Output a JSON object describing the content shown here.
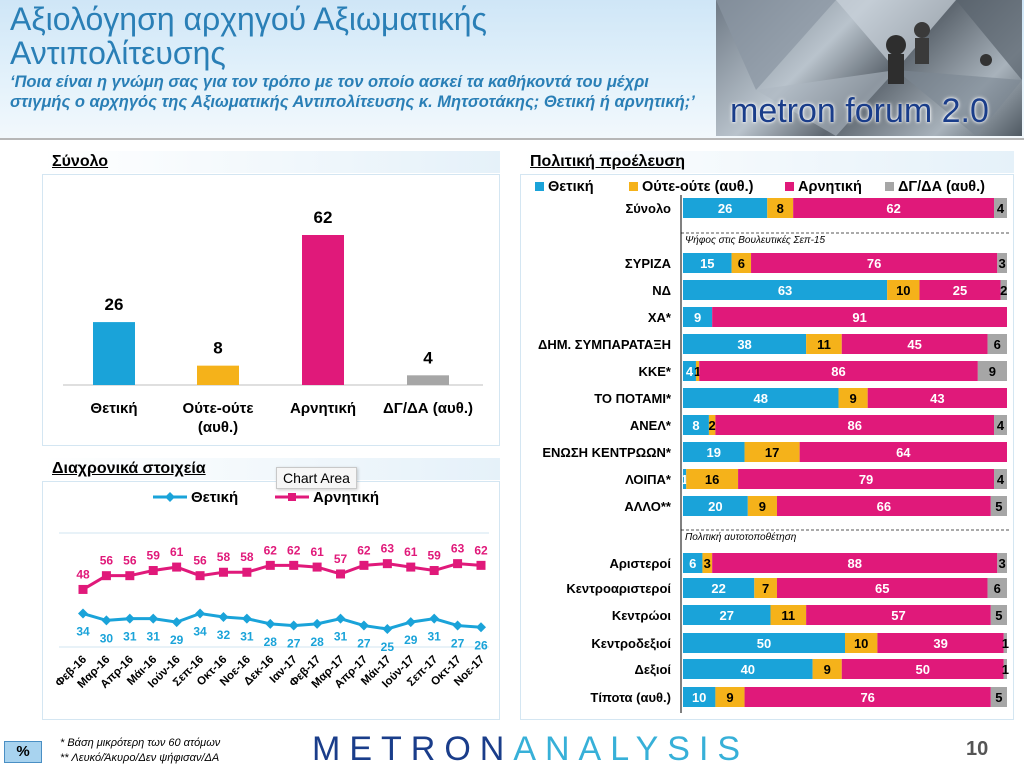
{
  "header": {
    "title": "Αξιολόγηση αρχηγού Αξιωματικής Αντιπολίτευσης",
    "subtitle": "‘Ποια είναι η γνώμη σας για τον τρόπο με τον οποίο ασκεί τα καθήκοντά του μέχρι στιγμής ο αρχηγός της Αξιωματικής Αντιπολίτευσης κ. Μητσοτάκης; Θετική ή αρνητική;’",
    "logo_text": "metron forum 2.0"
  },
  "colors": {
    "positive": "#1aa3d9",
    "neutral": "#f5b21a",
    "negative": "#e0197a",
    "dk": "#a6a6a6"
  },
  "sections": {
    "total": "Σύνολο",
    "trend": "Διαχρονικά στοιχεία",
    "political": "Πολιτική προέλευση"
  },
  "tooltip": "Chart Area",
  "chart_data": [
    {
      "type": "bar",
      "title": "Σύνολο",
      "categories": [
        "Θετική",
        "Ούτε-ούτε (αυθ.)",
        "Αρνητική",
        "ΔΓ/ΔΑ (αυθ.)"
      ],
      "values": [
        26,
        8,
        62,
        4
      ]
    },
    {
      "type": "line",
      "title": "Διαχρονικά στοιχεία",
      "x": [
        "Φεβ-16",
        "Μαρ-16",
        "Απρ-16",
        "Μάι-16",
        "Ιούν-16",
        "Σεπ-16",
        "Οκτ-16",
        "Νοε-16",
        "Δεκ-16",
        "Ιαν-17",
        "Φεβ-17",
        "Μαρ-17",
        "Απρ-17",
        "Μάι-17",
        "Ιούν-17",
        "Σεπ-17",
        "Οκτ-17",
        "Νοε-17"
      ],
      "series": [
        {
          "name": "Θετική",
          "values": [
            34,
            30,
            31,
            31,
            29,
            34,
            32,
            31,
            28,
            27,
            28,
            31,
            27,
            25,
            29,
            31,
            27,
            26
          ]
        },
        {
          "name": "Αρνητική",
          "values": [
            48,
            56,
            56,
            59,
            61,
            56,
            58,
            58,
            62,
            62,
            61,
            57,
            62,
            63,
            61,
            59,
            63,
            62
          ]
        }
      ],
      "legend": "top"
    },
    {
      "type": "bar",
      "title": "Πολιτική προέλευση",
      "stacked": true,
      "horizontal": true,
      "legend": [
        "Θετική",
        "Ούτε-ούτε (αυθ.)",
        "Αρνητική",
        "ΔΓ/ΔΑ (αυθ.)"
      ],
      "groups": [
        {
          "label": "",
          "rows": [
            {
              "label": "Σύνολο",
              "values": [
                26,
                8,
                62,
                4
              ]
            }
          ]
        },
        {
          "label": "Ψήφος στις Βουλευτικές Σεπ-15",
          "rows": [
            {
              "label": "ΣΥΡΙΖΑ",
              "values": [
                15,
                6,
                76,
                3
              ]
            },
            {
              "label": "ΝΔ",
              "values": [
                63,
                10,
                25,
                2
              ]
            },
            {
              "label": "ΧΑ*",
              "values": [
                9,
                0,
                91,
                0
              ]
            },
            {
              "label": "ΔΗΜ. ΣΥΜΠΑΡΑΤΑΞΗ",
              "values": [
                38,
                11,
                45,
                6
              ]
            },
            {
              "label": "ΚΚΕ*",
              "values": [
                4,
                1,
                86,
                9
              ]
            },
            {
              "label": "ΤΟ ΠΟΤΑΜΙ*",
              "values": [
                48,
                9,
                43,
                0
              ]
            },
            {
              "label": "ΑΝΕΛ*",
              "values": [
                8,
                2,
                86,
                4
              ]
            },
            {
              "label": "ΕΝΩΣΗ ΚΕΝΤΡΩΩΝ*",
              "values": [
                19,
                17,
                64,
                0
              ]
            },
            {
              "label": "ΛΟΙΠΑ*",
              "values": [
                1,
                16,
                79,
                4
              ]
            },
            {
              "label": "ΑΛΛΟ**",
              "values": [
                20,
                9,
                66,
                5
              ]
            }
          ]
        },
        {
          "label": "Πολιτική αυτοτοποθέτηση",
          "rows": [
            {
              "label": "Αριστεροί",
              "values": [
                6,
                3,
                88,
                3
              ]
            },
            {
              "label": "Κεντροαριστεροί",
              "values": [
                22,
                7,
                65,
                6
              ]
            },
            {
              "label": "Κεντρώοι",
              "values": [
                27,
                11,
                57,
                5
              ]
            },
            {
              "label": "Κεντροδεξιοί",
              "values": [
                50,
                10,
                39,
                1
              ]
            },
            {
              "label": "Δεξιοί",
              "values": [
                40,
                9,
                50,
                1
              ]
            },
            {
              "label": "Τίποτα (αυθ.)",
              "values": [
                10,
                9,
                76,
                5
              ]
            }
          ]
        }
      ]
    }
  ],
  "footer": {
    "note1": "* Βάση μικρότερη των 60 ατόμων",
    "note2": "** Λευκό/Άκυρο/Δεν ψήφισαν/ΔΑ",
    "badge": "%",
    "brand_a": "METRON",
    "brand_b": "ANALYSIS",
    "page": "10"
  }
}
